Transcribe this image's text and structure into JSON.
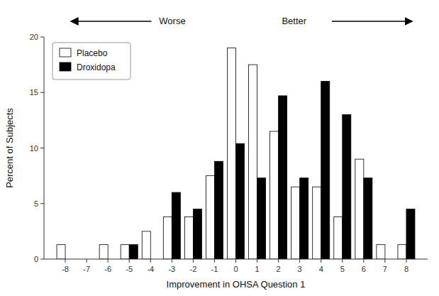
{
  "chart_data": {
    "type": "bar",
    "x_label": "Improvement in OHSA Question 1",
    "y_label": "Percent of Subjects",
    "x": [
      -8,
      -7,
      -6,
      -5,
      -4,
      -3,
      -2,
      -1,
      0,
      1,
      2,
      3,
      4,
      5,
      6,
      7,
      8
    ],
    "series": [
      {
        "name": "Placebo",
        "color": "#ffffff",
        "values": [
          1.3,
          0,
          1.3,
          1.3,
          2.5,
          3.8,
          3.8,
          7.5,
          19.0,
          17.5,
          11.5,
          6.5,
          6.5,
          3.8,
          9.0,
          1.3,
          1.3
        ]
      },
      {
        "name": "Droxidopa",
        "color": "#000000",
        "values": [
          0,
          0,
          0,
          1.3,
          0,
          6.0,
          4.5,
          8.8,
          10.4,
          7.3,
          14.7,
          7.3,
          16.0,
          13.0,
          7.3,
          0,
          4.5
        ]
      }
    ],
    "xlim": [
      -9,
      9
    ],
    "xticks": [
      -8,
      -7,
      -6,
      -5,
      -4,
      -3,
      -2,
      -1,
      0,
      1,
      2,
      3,
      4,
      5,
      6,
      7,
      8
    ],
    "ylim": [
      0,
      20
    ],
    "yticks": [
      0,
      5,
      10,
      15,
      20
    ],
    "annotations": [
      "Worse",
      "Better"
    ],
    "legend": "upper left",
    "grid": false
  }
}
